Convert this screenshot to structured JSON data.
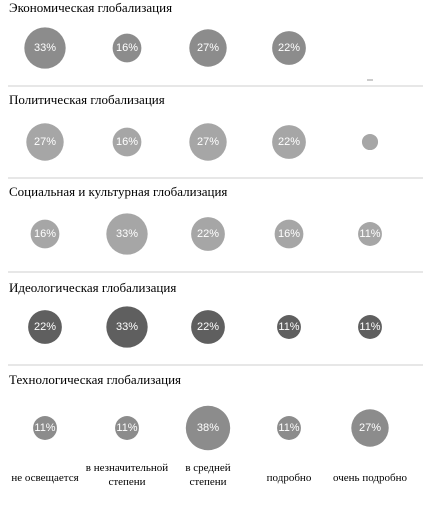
{
  "chart_data": {
    "type": "bubble",
    "categories": [
      "не освещается",
      "в незначительной степени",
      "в средней степени",
      "подробно",
      "очень подробно"
    ],
    "series": [
      {
        "name": "Экономическая глобализация",
        "values": [
          33,
          16,
          27,
          22,
          0
        ],
        "labels": [
          "33%",
          "16%",
          "27%",
          "22%",
          ""
        ],
        "color": "#8c8c8c"
      },
      {
        "name": "Политическая глобализация",
        "values": [
          27,
          16,
          27,
          22,
          5
        ],
        "labels": [
          "27%",
          "16%",
          "27%",
          "22%",
          ""
        ],
        "color": "#a6a6a6"
      },
      {
        "name": "Социальная и культурная глобализация",
        "values": [
          16,
          33,
          22,
          16,
          11
        ],
        "labels": [
          "16%",
          "33%",
          "22%",
          "16%",
          "11%"
        ],
        "color": "#a6a6a6"
      },
      {
        "name": "Идеологическая глобализация",
        "values": [
          22,
          33,
          22,
          11,
          11
        ],
        "labels": [
          "22%",
          "33%",
          "22%",
          "11%",
          "11%"
        ],
        "color": "#5f5f5f"
      },
      {
        "name": "Технологическая глобализация",
        "values": [
          11,
          11,
          38,
          11,
          27
        ],
        "labels": [
          "11%",
          "11%",
          "38%",
          "11%",
          "27%"
        ],
        "color": "#8c8c8c"
      }
    ]
  }
}
